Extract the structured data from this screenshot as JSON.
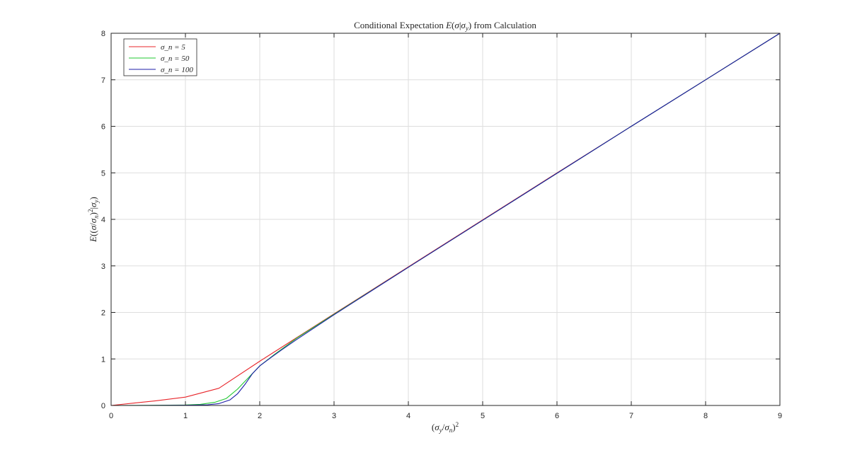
{
  "chart_data": {
    "type": "line",
    "title": "Conditional Expectation E(σ|σ_y) from Calculation",
    "xlabel": "(σ_y/σ_n)²",
    "ylabel": "E((σ/σ_n)²|σ_y)",
    "xlim": [
      0,
      9
    ],
    "ylim": [
      0,
      8
    ],
    "xticks": [
      "0",
      "1",
      "2",
      "3",
      "4",
      "5",
      "6",
      "7",
      "8",
      "9"
    ],
    "yticks": [
      "0",
      "1",
      "2",
      "3",
      "4",
      "5",
      "6",
      "7",
      "8"
    ],
    "grid": true,
    "legend_position": "top-left",
    "series": [
      {
        "name": "σ_n = 5",
        "color": "#e8252a",
        "x": [
          0,
          0.3,
          0.6,
          1.0,
          1.45,
          2.0,
          3.0,
          4.0,
          5.0,
          6.0,
          7.0,
          8.0,
          9.0
        ],
        "y": [
          0,
          0.05,
          0.1,
          0.18,
          0.37,
          0.95,
          1.97,
          2.98,
          3.99,
          5.0,
          6.0,
          7.0,
          8.0
        ]
      },
      {
        "name": "σ_n = 50",
        "color": "#22c832",
        "x": [
          0,
          0.5,
          1.0,
          1.2,
          1.4,
          1.55,
          1.7,
          1.85,
          2.0,
          2.2,
          2.5,
          3.0,
          4.0,
          5.0,
          6.0,
          7.0,
          8.0,
          9.0
        ],
        "y": [
          0,
          0.003,
          0.01,
          0.025,
          0.07,
          0.15,
          0.35,
          0.6,
          0.85,
          1.1,
          1.45,
          1.96,
          2.97,
          3.98,
          4.99,
          6.0,
          7.0,
          8.0
        ]
      },
      {
        "name": "σ_n = 100",
        "color": "#1c1ca8",
        "x": [
          0,
          0.5,
          1.0,
          1.3,
          1.45,
          1.6,
          1.7,
          1.8,
          1.9,
          2.0,
          2.15,
          2.3,
          2.5,
          3.0,
          4.0,
          5.0,
          6.0,
          7.0,
          8.0,
          9.0
        ],
        "y": [
          0,
          0.002,
          0.005,
          0.015,
          0.04,
          0.12,
          0.25,
          0.45,
          0.68,
          0.85,
          1.03,
          1.2,
          1.42,
          1.95,
          2.97,
          3.98,
          4.99,
          6.0,
          7.0,
          8.0
        ]
      }
    ]
  }
}
